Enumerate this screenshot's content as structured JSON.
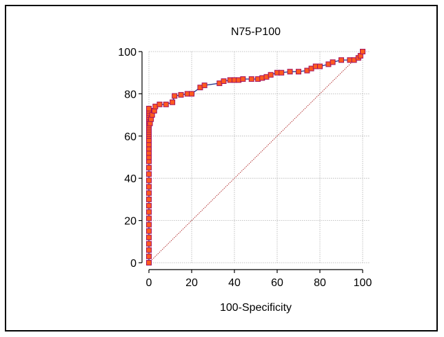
{
  "chart_data": {
    "type": "line",
    "title": "N75-P100",
    "xlabel": "100-Specificity",
    "ylabel": "",
    "xlim": [
      0,
      100
    ],
    "ylim": [
      0,
      100
    ],
    "xticks": [
      "0",
      "20",
      "40",
      "60",
      "80",
      "100"
    ],
    "yticks": [
      "0",
      "20",
      "40",
      "60",
      "80",
      "100"
    ],
    "grid": true,
    "colors": {
      "curve": "#2b3a8c",
      "marker_fill": "#ff5a1f",
      "marker_edge": "#a01060",
      "diagonal": "#a00000",
      "grid": "#b0b0b0"
    },
    "series": [
      {
        "x": [
          0,
          0,
          0,
          0,
          0,
          0,
          0,
          0,
          0,
          0,
          0,
          0,
          0,
          0,
          0,
          0,
          0,
          0,
          0,
          0,
          0,
          0,
          0,
          0,
          0,
          0,
          0,
          0,
          0,
          0,
          0,
          0,
          0,
          0,
          0,
          0,
          0.5,
          1,
          1.5,
          2.5,
          3,
          5,
          8,
          11,
          12,
          15,
          18,
          20,
          24,
          26,
          33,
          35,
          38,
          40,
          42,
          44,
          48,
          51,
          53,
          55,
          57,
          60,
          62,
          66,
          70,
          74,
          76,
          78,
          80,
          84,
          86,
          90,
          94,
          96,
          98,
          99,
          100
        ],
        "y": [
          0,
          3,
          6,
          9,
          12,
          15,
          18,
          21,
          24,
          27,
          30,
          33,
          36,
          39,
          42,
          45,
          48,
          50,
          52,
          54,
          56,
          58,
          60,
          61,
          62,
          63,
          64,
          65,
          66,
          67,
          68,
          69,
          70,
          71,
          72,
          73,
          66,
          68,
          70,
          72,
          74,
          75,
          75,
          76,
          79,
          79.5,
          80,
          80,
          83,
          84,
          85,
          86,
          86.5,
          86.5,
          86.5,
          87,
          87,
          87,
          87.5,
          88,
          89,
          90,
          90,
          90.5,
          90.5,
          91,
          92,
          93,
          93,
          94,
          95,
          96,
          96,
          96,
          97,
          98,
          100
        ]
      }
    ]
  }
}
